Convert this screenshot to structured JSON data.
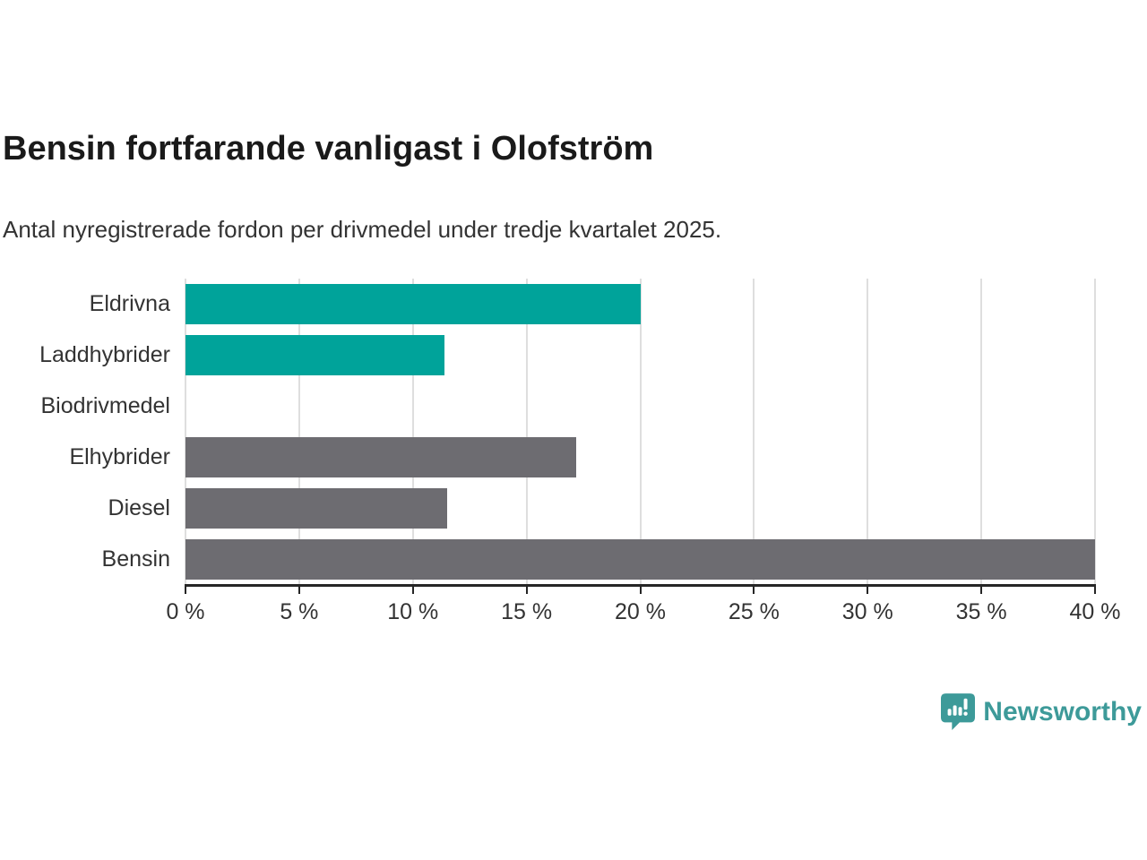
{
  "header": {
    "title": "Bensin fortfarande vanligast i Olofström",
    "subtitle": "Antal nyregistrerade fordon per drivmedel under tredje kvartalet 2025."
  },
  "chart_data": {
    "type": "bar",
    "orientation": "horizontal",
    "title": "Bensin fortfarande vanligast i Olofström",
    "subtitle": "Antal nyregistrerade fordon per drivmedel under tredje kvartalet 2025.",
    "categories": [
      "Eldrivna",
      "Laddhybrider",
      "Biodrivmedel",
      "Elhybrider",
      "Diesel",
      "Bensin"
    ],
    "values": [
      20,
      11.4,
      0,
      17.2,
      11.5,
      40
    ],
    "bar_colors": [
      "#00a39a",
      "#00a39a",
      null,
      "#6d6c71",
      "#6d6c71",
      "#6d6c71"
    ],
    "xlabel": "",
    "ylabel": "",
    "xlim": [
      0,
      40
    ],
    "xticks": [
      0,
      5,
      10,
      15,
      20,
      25,
      30,
      35,
      40
    ],
    "xtick_labels": [
      "0 %",
      "5 %",
      "10 %",
      "15 %",
      "20 %",
      "25 %",
      "30 %",
      "35 %",
      "40 %"
    ],
    "grid": "vertical-only",
    "gridline_color": "#dedede",
    "axis_color": "#262626",
    "legend": "none"
  },
  "colors": {
    "accent_teal": "#00a39a",
    "neutral_gray": "#6d6c71",
    "logo_teal": "#3d9a99",
    "text_dark": "#1a1a1a",
    "text_body": "#333333"
  },
  "branding": {
    "logo_text": "Newsworthy",
    "logo_icon": "speech-bubble-bar-chart-exclamation"
  }
}
